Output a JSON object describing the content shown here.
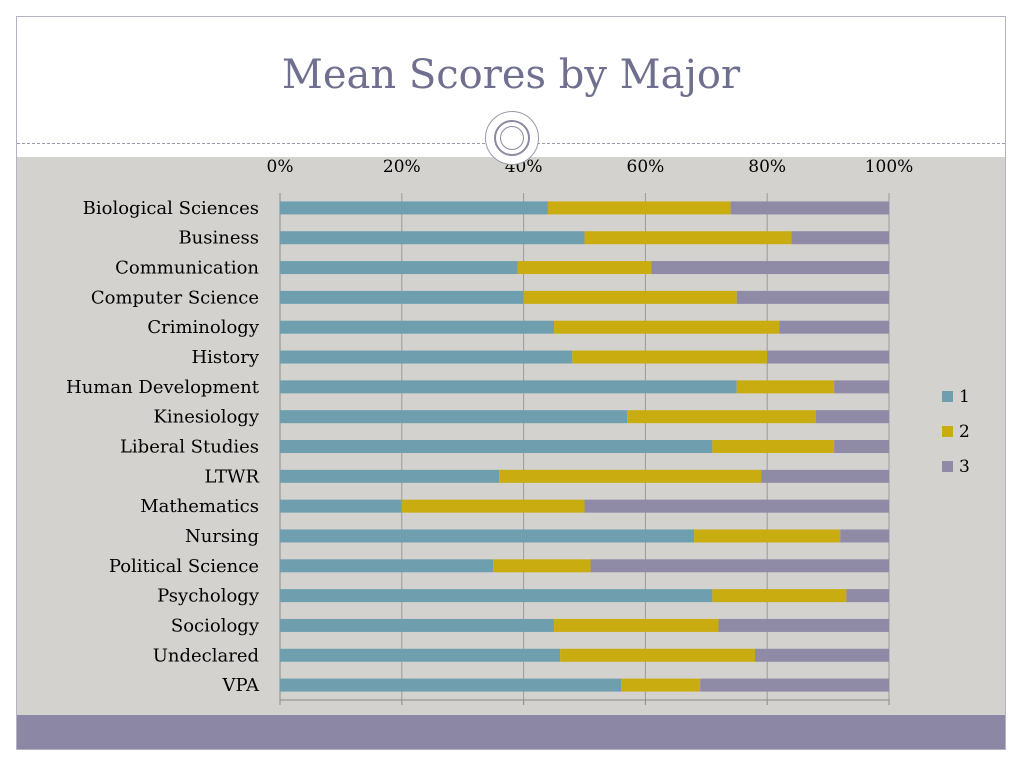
{
  "slide": {
    "title": "Mean Scores by Major",
    "colors": {
      "frame_border": "#b3b3c4",
      "title_text": "#6f6f8f",
      "content_bg": "#d4d2cf",
      "footer_bg": "#8b87a4"
    }
  },
  "chart_data": {
    "type": "bar",
    "orientation": "horizontal",
    "stacked": "percent",
    "title": "",
    "xlabel": "",
    "ylabel": "",
    "xlim": [
      0,
      100
    ],
    "x_ticks": [
      "0%",
      "20%",
      "40%",
      "60%",
      "80%",
      "100%"
    ],
    "x_tick_values": [
      0,
      20,
      40,
      60,
      80,
      100
    ],
    "x_axis_position": "top",
    "grid": true,
    "legend_position": "right",
    "categories": [
      "Biological Sciences",
      "Business",
      "Communication",
      "Computer Science",
      "Criminology",
      "History",
      "Human Development",
      "Kinesiology",
      "Liberal Studies",
      "LTWR",
      "Mathematics",
      "Nursing",
      "Political Science",
      "Psychology",
      "Sociology",
      "Undeclared",
      "VPA"
    ],
    "series": [
      {
        "name": "1",
        "color": "#6f9fae",
        "values": [
          44,
          50,
          39,
          40,
          45,
          48,
          75,
          57,
          71,
          36,
          20,
          68,
          35,
          71,
          45,
          46,
          56
        ]
      },
      {
        "name": "2",
        "color": "#c9ac10",
        "values": [
          30,
          34,
          22,
          35,
          37,
          32,
          16,
          31,
          20,
          43,
          30,
          24,
          16,
          22,
          27,
          32,
          13
        ]
      },
      {
        "name": "3",
        "color": "#8f8aa6",
        "values": [
          26,
          16,
          39,
          25,
          18,
          20,
          9,
          12,
          9,
          21,
          50,
          8,
          49,
          7,
          28,
          22,
          31
        ]
      }
    ]
  }
}
